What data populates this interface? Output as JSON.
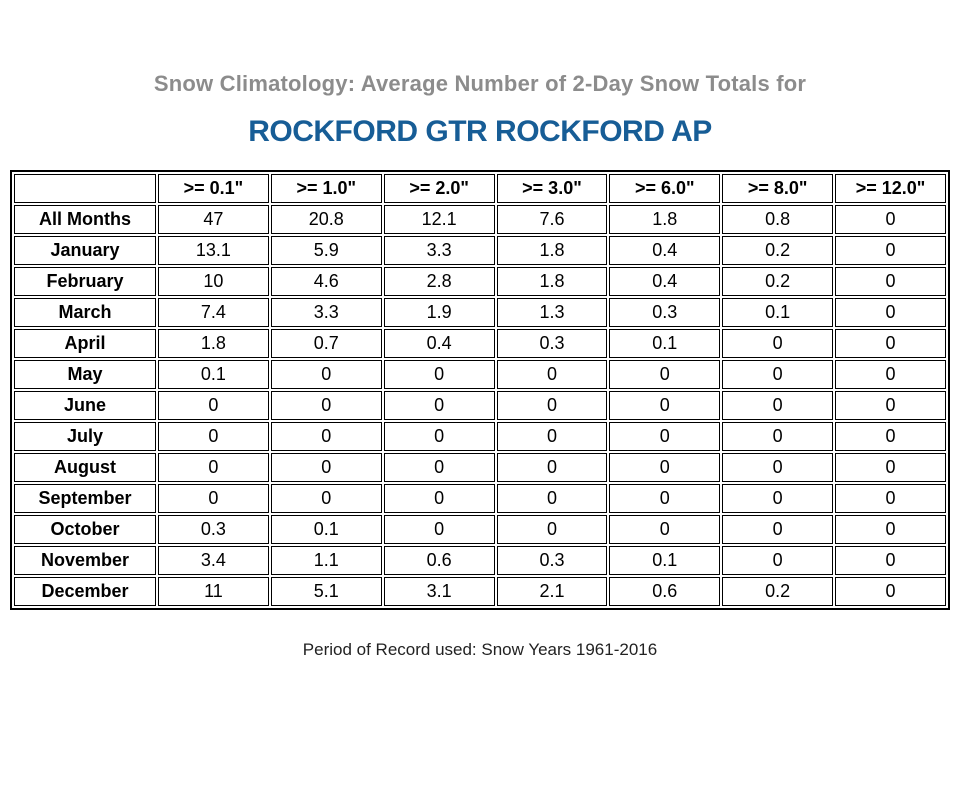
{
  "header": {
    "subtitle": "Snow Climatology: Average Number of 2-Day Snow Totals for",
    "title": "ROCKFORD GTR ROCKFORD AP"
  },
  "colors": {
    "subtitle_text": "#8c8c8c",
    "title_text": "#175d96",
    "table_border": "#000000",
    "footer_text": "#222222",
    "background": "#ffffff"
  },
  "table": {
    "columns": [
      "",
      ">= 0.1\"",
      ">= 1.0\"",
      ">= 2.0\"",
      ">= 3.0\"",
      ">= 6.0\"",
      ">= 8.0\"",
      ">= 12.0\""
    ],
    "rows": [
      {
        "label": "All Months",
        "values": [
          "47",
          "20.8",
          "12.1",
          "7.6",
          "1.8",
          "0.8",
          "0"
        ]
      },
      {
        "label": "January",
        "values": [
          "13.1",
          "5.9",
          "3.3",
          "1.8",
          "0.4",
          "0.2",
          "0"
        ]
      },
      {
        "label": "February",
        "values": [
          "10",
          "4.6",
          "2.8",
          "1.8",
          "0.4",
          "0.2",
          "0"
        ]
      },
      {
        "label": "March",
        "values": [
          "7.4",
          "3.3",
          "1.9",
          "1.3",
          "0.3",
          "0.1",
          "0"
        ]
      },
      {
        "label": "April",
        "values": [
          "1.8",
          "0.7",
          "0.4",
          "0.3",
          "0.1",
          "0",
          "0"
        ]
      },
      {
        "label": "May",
        "values": [
          "0.1",
          "0",
          "0",
          "0",
          "0",
          "0",
          "0"
        ]
      },
      {
        "label": "June",
        "values": [
          "0",
          "0",
          "0",
          "0",
          "0",
          "0",
          "0"
        ]
      },
      {
        "label": "July",
        "values": [
          "0",
          "0",
          "0",
          "0",
          "0",
          "0",
          "0"
        ]
      },
      {
        "label": "August",
        "values": [
          "0",
          "0",
          "0",
          "0",
          "0",
          "0",
          "0"
        ]
      },
      {
        "label": "September",
        "values": [
          "0",
          "0",
          "0",
          "0",
          "0",
          "0",
          "0"
        ]
      },
      {
        "label": "October",
        "values": [
          "0.3",
          "0.1",
          "0",
          "0",
          "0",
          "0",
          "0"
        ]
      },
      {
        "label": "November",
        "values": [
          "3.4",
          "1.1",
          "0.6",
          "0.3",
          "0.1",
          "0",
          "0"
        ]
      },
      {
        "label": "December",
        "values": [
          "11",
          "5.1",
          "3.1",
          "2.1",
          "0.6",
          "0.2",
          "0"
        ]
      }
    ]
  },
  "footer": {
    "text": "Period of Record used: Snow Years 1961-2016"
  },
  "chart_data": {
    "type": "table",
    "title": "Snow Climatology: Average Number of 2-Day Snow Totals for ROCKFORD GTR ROCKFORD AP",
    "categories": [
      "All Months",
      "January",
      "February",
      "March",
      "April",
      "May",
      "June",
      "July",
      "August",
      "September",
      "October",
      "November",
      "December"
    ],
    "series": [
      {
        "name": ">= 0.1\"",
        "values": [
          47,
          13.1,
          10,
          7.4,
          1.8,
          0.1,
          0,
          0,
          0,
          0,
          0.3,
          3.4,
          11
        ]
      },
      {
        "name": ">= 1.0\"",
        "values": [
          20.8,
          5.9,
          4.6,
          3.3,
          0.7,
          0,
          0,
          0,
          0,
          0,
          0.1,
          1.1,
          5.1
        ]
      },
      {
        "name": ">= 2.0\"",
        "values": [
          12.1,
          3.3,
          2.8,
          1.9,
          0.4,
          0,
          0,
          0,
          0,
          0,
          0,
          0.6,
          3.1
        ]
      },
      {
        "name": ">= 3.0\"",
        "values": [
          7.6,
          1.8,
          1.8,
          1.3,
          0.3,
          0,
          0,
          0,
          0,
          0,
          0,
          0.3,
          2.1
        ]
      },
      {
        "name": ">= 6.0\"",
        "values": [
          1.8,
          0.4,
          0.4,
          0.3,
          0.1,
          0,
          0,
          0,
          0,
          0,
          0,
          0.1,
          0.6
        ]
      },
      {
        "name": ">= 8.0\"",
        "values": [
          0.8,
          0.2,
          0.2,
          0.1,
          0,
          0,
          0,
          0,
          0,
          0,
          0,
          0,
          0.2
        ]
      },
      {
        "name": ">= 12.0\"",
        "values": [
          0,
          0,
          0,
          0,
          0,
          0,
          0,
          0,
          0,
          0,
          0,
          0,
          0
        ]
      }
    ],
    "note": "Period of Record used: Snow Years 1961-2016"
  }
}
